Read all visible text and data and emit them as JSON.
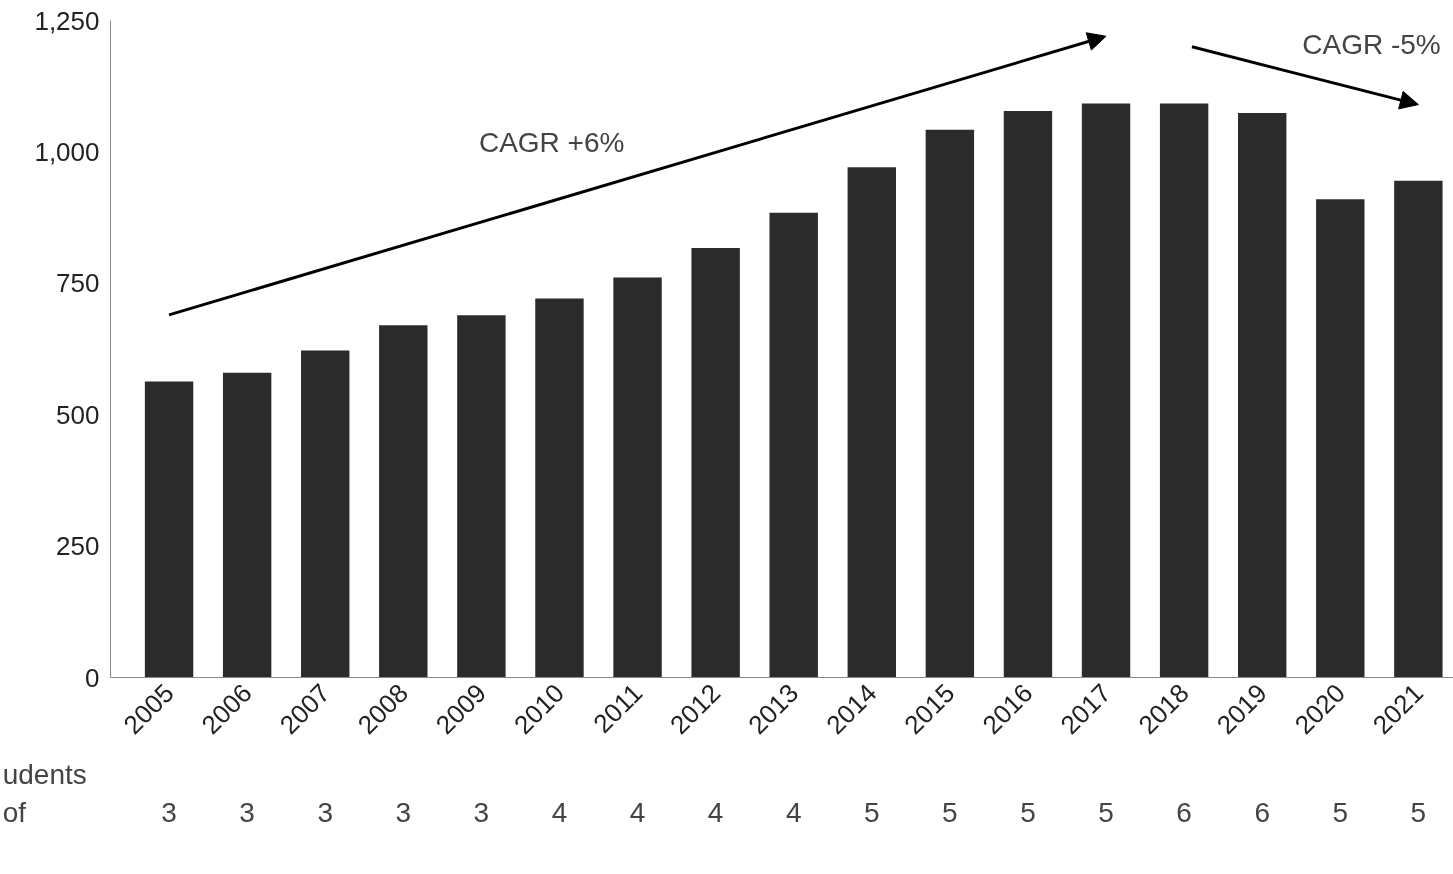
{
  "chart_data": {
    "type": "bar",
    "categories": [
      "2005",
      "2006",
      "2007",
      "2008",
      "2009",
      "2010",
      "2011",
      "2012",
      "2013",
      "2014",
      "2015",
      "2016",
      "2017",
      "2018",
      "2019",
      "2020",
      "2021"
    ],
    "values": [
      563,
      580,
      622,
      670,
      689,
      721,
      761,
      817,
      884,
      971,
      1042,
      1078,
      1092,
      1092,
      1074,
      910,
      945
    ],
    "color": "#2b2b2b",
    "ylim": [
      0,
      1250
    ],
    "yticks": [
      0,
      {
        "value": 250,
        "label": "250"
      },
      {
        "value": 500,
        "label": "500"
      },
      {
        "value": 750,
        "label": "750"
      },
      {
        "value": 1000,
        "label": "1,000"
      },
      {
        "value": 1250,
        "label": "1,250"
      }
    ],
    "grid": false,
    "annotations": [
      "CAGR +6%",
      "CAGR -5%",
      "udents",
      "of",
      "3",
      "3",
      "3",
      "3",
      "3",
      "4",
      "4",
      "4",
      "4",
      "5",
      "5",
      "5",
      "5",
      "6",
      "6",
      "5",
      "5"
    ]
  }
}
